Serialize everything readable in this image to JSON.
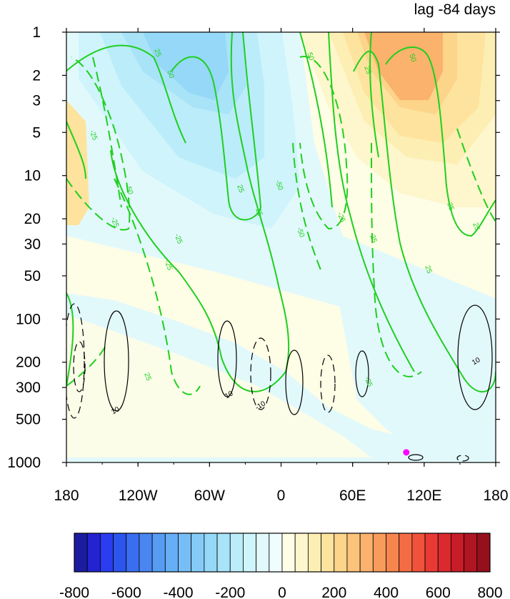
{
  "chart_data": {
    "type": "heatmap",
    "title": "lag -84 days",
    "xlabel": "",
    "ylabel": "",
    "x_axis": {
      "range": [
        -180,
        180
      ],
      "ticks": [
        -180,
        -120,
        -60,
        0,
        60,
        120,
        180
      ],
      "tick_labels": [
        "180",
        "120W",
        "60W",
        "0",
        "60E",
        "120E",
        "180"
      ]
    },
    "y_axis": {
      "scale": "log",
      "inverted": true,
      "range": [
        1000,
        1
      ],
      "ticks": [
        1,
        2,
        3,
        5,
        10,
        20,
        30,
        50,
        100,
        200,
        300,
        500,
        1000
      ],
      "tick_labels": [
        "1",
        "2",
        "3",
        "5",
        "10",
        "20",
        "30",
        "50",
        "100",
        "200",
        "300",
        "500",
        "1000"
      ]
    },
    "colorbar": {
      "orientation": "horizontal",
      "levels": [
        -800,
        -750,
        -700,
        -650,
        -600,
        -550,
        -500,
        -450,
        -400,
        -350,
        -300,
        -250,
        -200,
        -150,
        -100,
        -50,
        0,
        50,
        100,
        150,
        200,
        250,
        300,
        350,
        400,
        450,
        500,
        550,
        600,
        650,
        700,
        750,
        800
      ],
      "colors": [
        "#1c1ca0",
        "#2323d2",
        "#2b3bf0",
        "#2c55ec",
        "#3a6ef0",
        "#4a86f2",
        "#569cf3",
        "#66aef5",
        "#78bef6",
        "#86cbf7",
        "#96d8f7",
        "#a8e3f8",
        "#bbecf9",
        "#cff4fb",
        "#e2f9fc",
        "#f0fdfd",
        "#fefde6",
        "#fef6cc",
        "#fdeeb3",
        "#fde39d",
        "#fcd48a",
        "#fbc47a",
        "#fab26c",
        "#f89c5c",
        "#f6854e",
        "#f46c44",
        "#f0523a",
        "#e83a34",
        "#da2a2e",
        "#c81d28",
        "#b01522",
        "#960f1c"
      ],
      "tick_values": [
        -800,
        -600,
        -400,
        -200,
        0,
        200,
        400,
        600,
        800
      ],
      "tick_labels": [
        "-800",
        "-600",
        "-400",
        "-200",
        "0",
        "200",
        "400",
        "600",
        "800"
      ]
    },
    "shaded_field_features": [
      {
        "label": "negative anomaly, stratosphere",
        "lon_center": -60,
        "p_center": 2,
        "min_value": -250
      },
      {
        "label": "positive anomaly, stratosphere",
        "lon_center": 110,
        "p_center": 2,
        "max_value": 250
      },
      {
        "label": "positive anomaly, lower troposphere",
        "lon_center": -30,
        "p_center": 300,
        "max_value": 50
      },
      {
        "label": "negative anomaly, lower troposphere",
        "lon_center": 140,
        "p_center": 500,
        "min_value": -50
      }
    ],
    "green_contour_labels": [
      "-25",
      "-25",
      "-50",
      "-50",
      "-25",
      "-50",
      "-25",
      "-25",
      "25",
      "50",
      "25",
      "25",
      "50",
      "25",
      "25",
      "50",
      "25",
      "25",
      "25",
      "25",
      "-25"
    ],
    "black_contour_labels": [
      "10",
      "10",
      "-10",
      "10"
    ],
    "marker": {
      "lon": 105,
      "p": 850,
      "color": "#ff00ff"
    }
  }
}
